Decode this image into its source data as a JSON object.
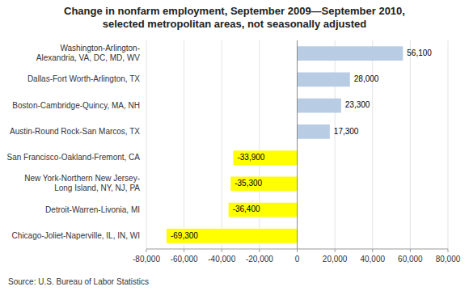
{
  "chart_data": {
    "type": "bar",
    "orientation": "horizontal",
    "title": "Change in nonfarm employment,  September 2009—September 2010,\nselected metropolitan areas, not seasonally adjusted",
    "source": "Source: U.S. Bureau of Labor Statistics",
    "categories": [
      "Chicago-Joliet-Naperville, IL, IN, WI",
      "Detroit-Warren-Livonia, MI",
      "New York-Northern New Jersey-\nLong Island, NY, NJ, PA",
      "San Francisco-Oakland-Fremont, CA",
      "Austin-Round Rock-San Marcos, TX",
      "Boston-Cambridge-Quincy, MA, NH",
      "Dallas-Fort Worth-Arlington, TX",
      "Washington-Arlington-\nAlexandria, VA, DC, MD, WV"
    ],
    "values": [
      -69300,
      -36400,
      -35300,
      -33900,
      17300,
      23300,
      28000,
      56100
    ],
    "value_labels": [
      "-69,300",
      "-36,400",
      "-35,300",
      "-33,900",
      "17,300",
      "23,300",
      "28,000",
      "56,100"
    ],
    "data_labels": true,
    "colors": [
      "#ffff00",
      "#ffff00",
      "#ffff00",
      "#ffff00",
      "#b8cce4",
      "#b8cce4",
      "#b8cce4",
      "#b8cce4"
    ],
    "xlim": [
      -80000,
      80000
    ],
    "xticks": [
      {
        "value": -80000,
        "label": "-80,000"
      },
      {
        "value": -60000,
        "label": "-60,000"
      },
      {
        "value": -40000,
        "label": "-40,000"
      },
      {
        "value": -20000,
        "label": "-20,000"
      },
      0,
      {
        "value": 20000,
        "label": "20,000"
      },
      {
        "value": 40000,
        "label": "40,000"
      },
      {
        "value": 60000,
        "label": "60,000"
      },
      {
        "value": 80000,
        "label": "80,000"
      }
    ],
    "grid": true
  }
}
